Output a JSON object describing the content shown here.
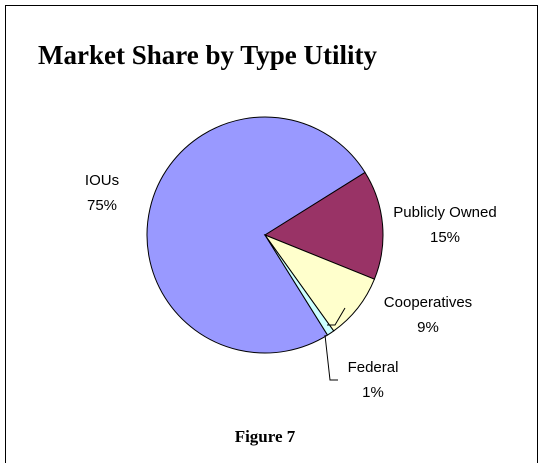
{
  "chart_data": {
    "type": "pie",
    "title": "Market Share by Type Utility",
    "caption": "Figure 7",
    "categories": [
      "IOUs",
      "Publicly Owned",
      "Cooperatives",
      "Federal"
    ],
    "values": [
      75,
      15,
      9,
      1
    ],
    "value_labels": [
      "75%",
      "15%",
      "9%",
      "1%"
    ],
    "colors": [
      "#9999ff",
      "#993366",
      "#ffffcc",
      "#ccffff"
    ]
  }
}
